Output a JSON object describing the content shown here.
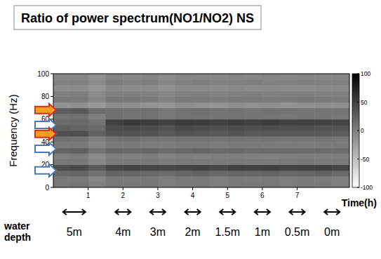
{
  "chart_data": {
    "type": "heatmap",
    "title": "Ratio of power spectrum(NO1/NO2) NS",
    "x_label": "Time(h)",
    "y_label": "Frequency (Hz)",
    "xlim": [
      0,
      8.5
    ],
    "ylim": [
      0,
      100
    ],
    "xticks": [
      1,
      2,
      3,
      4,
      5,
      6,
      7
    ],
    "yticks": [
      0,
      20,
      40,
      60,
      80,
      100
    ],
    "xbins": [
      0,
      0.5,
      1,
      1.5,
      2,
      2.5,
      3,
      3.5,
      4,
      4.5,
      5,
      5.5,
      6,
      6.5,
      7,
      7.5,
      8,
      8.5
    ],
    "ybins": [
      0,
      5,
      10,
      15,
      20,
      25,
      30,
      35,
      40,
      45,
      50,
      55,
      60,
      65,
      70,
      75,
      80,
      85,
      90,
      95,
      100
    ],
    "cells": [
      [
        5,
        8,
        0,
        6,
        4,
        7,
        3,
        5,
        6,
        2,
        5,
        4,
        6,
        3,
        5,
        4,
        2
      ],
      [
        4,
        6,
        -5,
        5,
        3,
        6,
        2,
        4,
        5,
        1,
        4,
        3,
        5,
        2,
        4,
        3,
        1
      ],
      [
        18,
        20,
        10,
        22,
        20,
        18,
        15,
        20,
        22,
        18,
        20,
        19,
        21,
        18,
        20,
        22,
        18
      ],
      [
        40,
        42,
        30,
        45,
        48,
        46,
        44,
        47,
        48,
        45,
        50,
        48,
        50,
        47,
        49,
        50,
        46
      ],
      [
        6,
        5,
        -5,
        4,
        6,
        5,
        3,
        6,
        5,
        4,
        6,
        5,
        4,
        6,
        5,
        4,
        5
      ],
      [
        0,
        2,
        -8,
        1,
        0,
        2,
        -2,
        1,
        0,
        2,
        1,
        0,
        -1,
        1,
        2,
        0,
        1
      ],
      [
        22,
        25,
        10,
        20,
        18,
        20,
        15,
        18,
        20,
        17,
        18,
        16,
        18,
        17,
        15,
        16,
        14
      ],
      [
        5,
        6,
        -5,
        4,
        5,
        3,
        2,
        4,
        5,
        3,
        4,
        5,
        3,
        4,
        2,
        3,
        4
      ],
      [
        12,
        10,
        0,
        10,
        12,
        8,
        6,
        10,
        9,
        8,
        10,
        8,
        9,
        7,
        8,
        9,
        7
      ],
      [
        38,
        40,
        25,
        35,
        36,
        34,
        30,
        34,
        33,
        32,
        34,
        30,
        32,
        30,
        31,
        30,
        28
      ],
      [
        25,
        22,
        15,
        40,
        42,
        40,
        36,
        42,
        40,
        38,
        40,
        38,
        40,
        37,
        38,
        36,
        35
      ],
      [
        15,
        18,
        10,
        50,
        55,
        52,
        48,
        54,
        52,
        50,
        52,
        50,
        52,
        48,
        50,
        48,
        46
      ],
      [
        10,
        12,
        0,
        12,
        10,
        11,
        6,
        10,
        9,
        8,
        10,
        9,
        8,
        7,
        9,
        8,
        7
      ],
      [
        28,
        30,
        15,
        12,
        10,
        12,
        6,
        10,
        11,
        9,
        10,
        8,
        10,
        9,
        8,
        9,
        8
      ],
      [
        -15,
        -12,
        -20,
        -10,
        -12,
        -15,
        -18,
        -12,
        -14,
        -15,
        -12,
        -14,
        -13,
        -15,
        -14,
        -12,
        -13
      ],
      [
        5,
        4,
        -5,
        6,
        5,
        4,
        0,
        5,
        4,
        3,
        5,
        4,
        3,
        4,
        5,
        4,
        3
      ],
      [
        0,
        2,
        -8,
        0,
        1,
        -1,
        -5,
        0,
        1,
        -2,
        0,
        1,
        -1,
        0,
        1,
        -1,
        0
      ],
      [
        -10,
        -8,
        -15,
        -6,
        -8,
        -9,
        -12,
        -7,
        -8,
        -9,
        -6,
        -8,
        -7,
        -9,
        -8,
        -7,
        -6
      ],
      [
        -2,
        0,
        -10,
        2,
        0,
        1,
        -4,
        0,
        2,
        -1,
        0,
        1,
        -2,
        0,
        1,
        -1,
        0
      ],
      [
        -6,
        -5,
        -12,
        -3,
        -5,
        -4,
        -8,
        -4,
        -5,
        -6,
        -4,
        -5,
        -3,
        -5,
        -4,
        -6,
        -5
      ]
    ],
    "colorbar": {
      "range": [
        -100,
        100
      ],
      "ticks": [
        -100,
        -50,
        0,
        50,
        100
      ]
    },
    "arrows": [
      {
        "frequency": 68,
        "color": "#f5a020"
      },
      {
        "frequency": 55,
        "color": "#ffffff"
      },
      {
        "frequency": 47,
        "color": "#f5a020"
      },
      {
        "frequency": 34,
        "color": "#ffffff"
      },
      {
        "frequency": 15,
        "color": "#ffffff"
      }
    ],
    "water_depth": {
      "label": "water depth",
      "items": [
        {
          "x": 0.6,
          "label": "5m"
        },
        {
          "x": 2,
          "label": "4m"
        },
        {
          "x": 3,
          "label": "3m"
        },
        {
          "x": 4,
          "label": "2m"
        },
        {
          "x": 5,
          "label": "1.5m"
        },
        {
          "x": 6,
          "label": "1m"
        },
        {
          "x": 7,
          "label": "0.5m"
        },
        {
          "x": 8,
          "label": "0m"
        }
      ]
    }
  }
}
